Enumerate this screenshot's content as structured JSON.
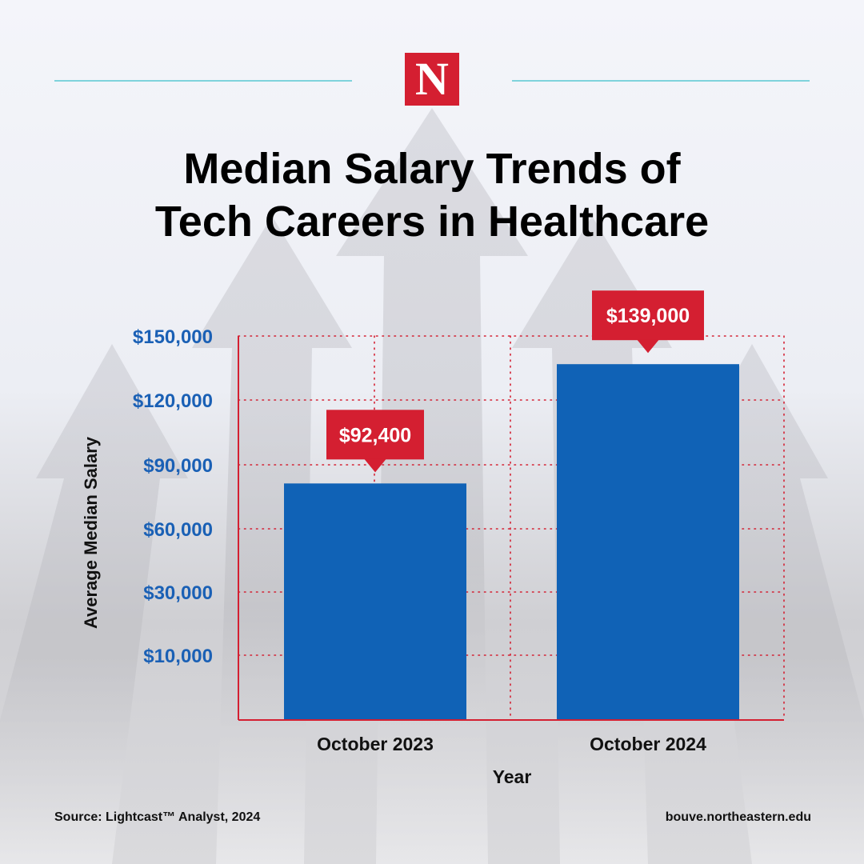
{
  "logo": {
    "letter": "N"
  },
  "title": {
    "line1": "Median Salary Trends of",
    "line2": "Tech Careers in Healthcare"
  },
  "chart_data": {
    "type": "bar",
    "title": "Median Salary Trends of Tech Careers in Healthcare",
    "xlabel": "Year",
    "ylabel": "Average Median Salary",
    "categories": [
      "October 2023",
      "October 2024"
    ],
    "values": [
      92400,
      139000
    ],
    "value_labels": [
      "$92,400",
      "$139,000"
    ],
    "y_tick_labels": [
      "$150,000",
      "$120,000",
      "$90,000",
      "$60,000",
      "$30,000",
      "$10,000"
    ],
    "ylim": [
      0,
      150000
    ],
    "grid": true,
    "colors": {
      "bar": "#1062b6",
      "callout": "#d41f31",
      "axis": "#d41f31",
      "tick_text": "#1a60b5"
    }
  },
  "footer": {
    "source": "Source: Lightcast™ Analyst, 2024",
    "url": "bouve.northeastern.edu"
  }
}
